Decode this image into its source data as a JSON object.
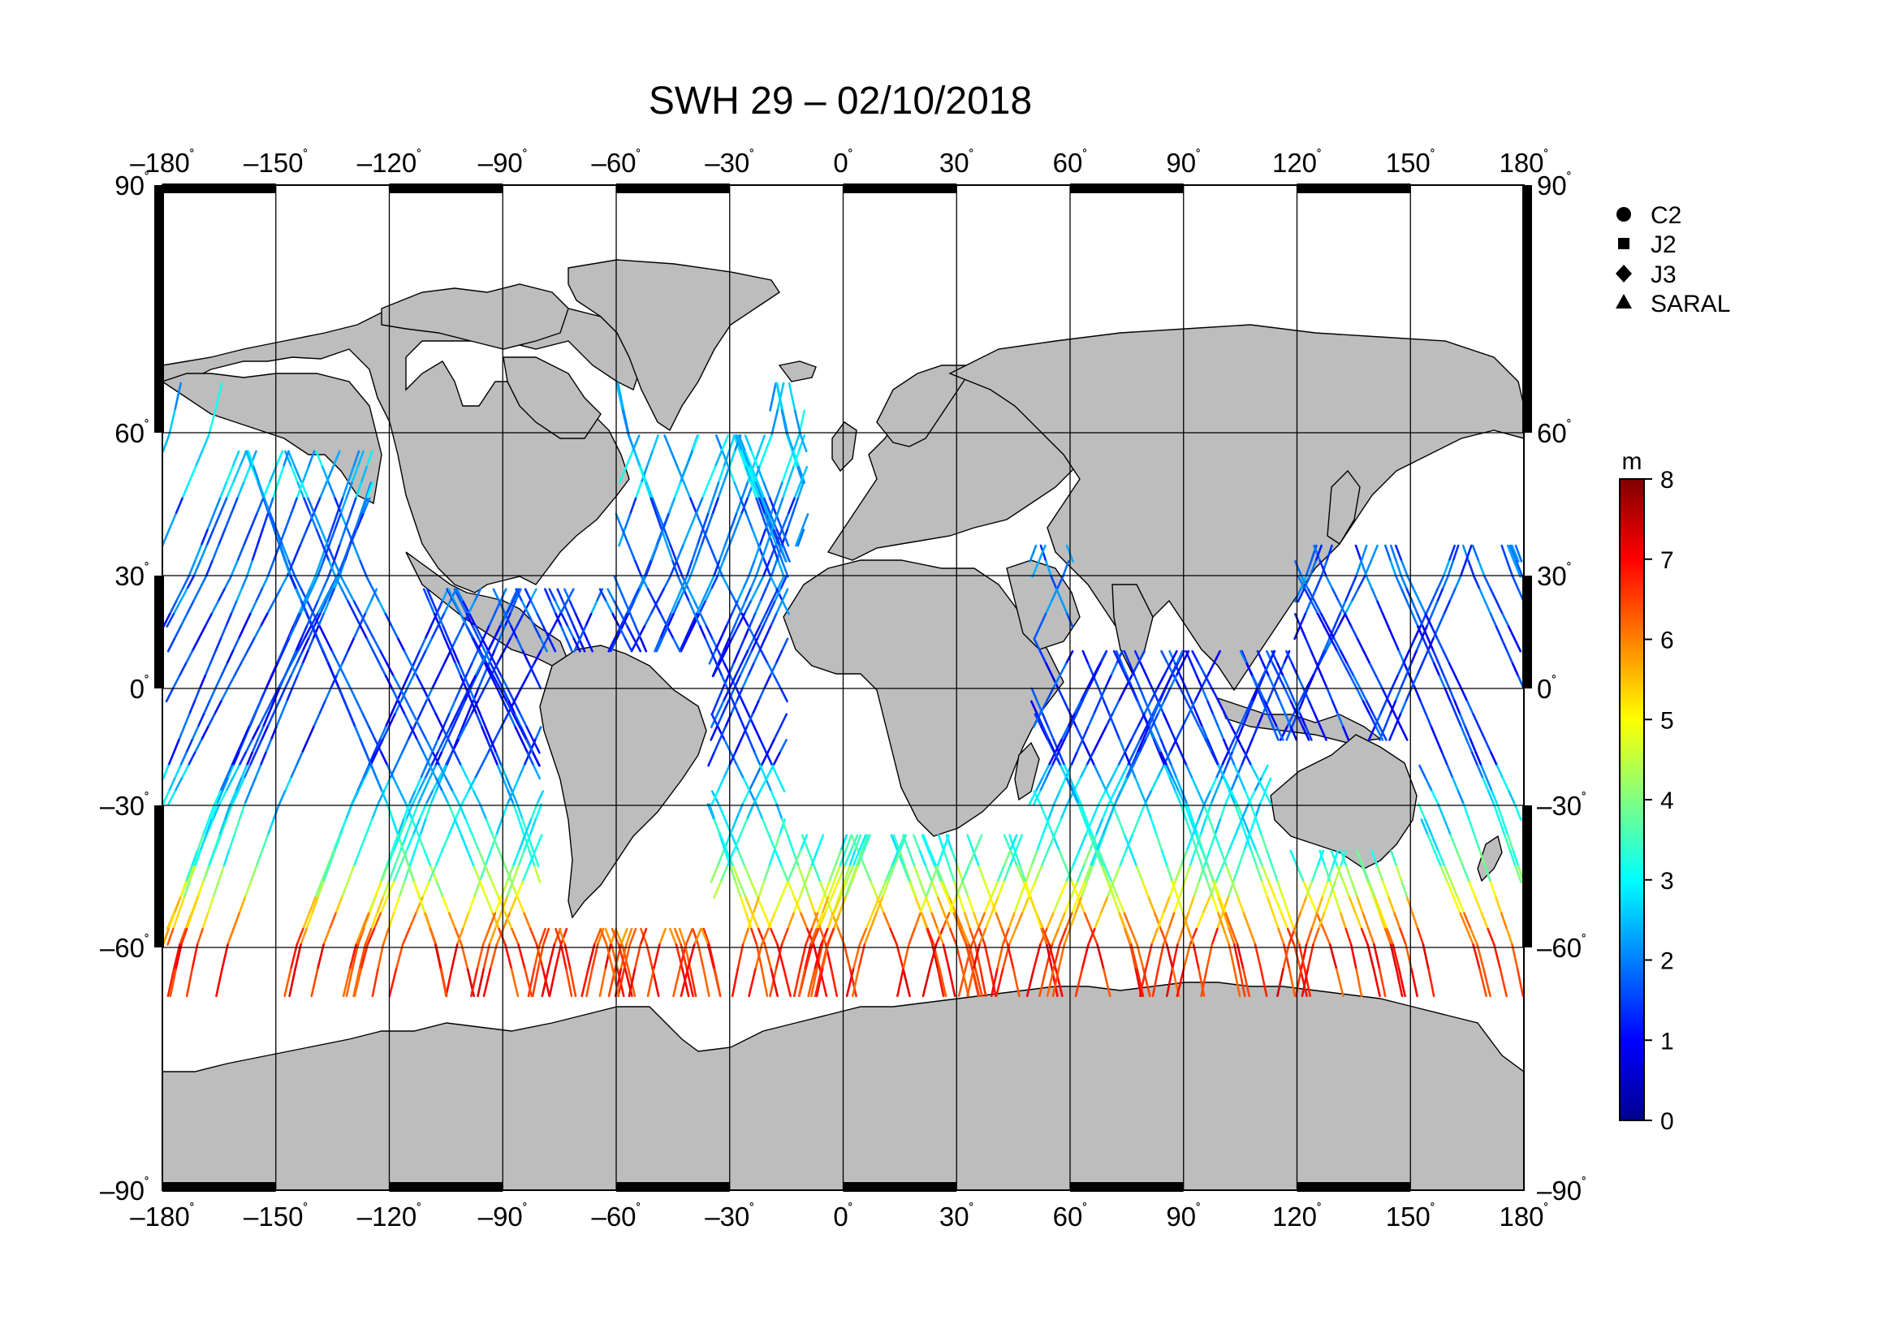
{
  "title": "SWH 29 – 02/10/2018",
  "lon_ticks": [
    "–180",
    "–150",
    "–120",
    "–90",
    "–60",
    "–30",
    "0",
    "30",
    "60",
    "90",
    "120",
    "150",
    "180"
  ],
  "lat_ticks": [
    "90",
    "60",
    "30",
    "0",
    "–30",
    "–60",
    "–90"
  ],
  "degree_symbol": "˚",
  "legend": {
    "items": [
      {
        "label": "C2",
        "symbol": "circle"
      },
      {
        "label": "J2",
        "symbol": "square"
      },
      {
        "label": "J3",
        "symbol": "diamond"
      },
      {
        "label": "SARAL",
        "symbol": "triangle"
      }
    ]
  },
  "colorbar": {
    "unit": "m",
    "min": 0,
    "max": 8,
    "tick_labels": [
      "8",
      "7",
      "6",
      "5",
      "4",
      "3",
      "2",
      "1",
      "0"
    ],
    "colors": [
      "#00008f",
      "#0000ff",
      "#0080ff",
      "#00ffff",
      "#80ff80",
      "#ffff00",
      "#ff8000",
      "#ff0000",
      "#800000"
    ]
  },
  "colors": {
    "land": "#bdbdbd",
    "ocean": "#ffffff",
    "frame": "#000000"
  }
}
